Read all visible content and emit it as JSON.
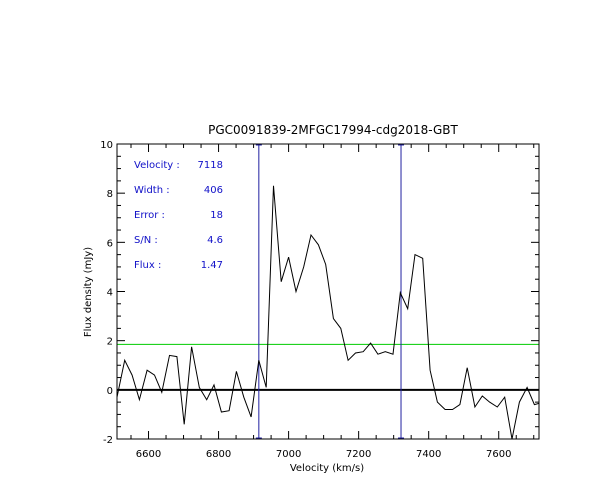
{
  "chart_data": {
    "type": "line",
    "title": "PGC0091839-2MFGC17994-cdg2018-GBT",
    "xlabel": "Velocity (km/s)",
    "ylabel": "Flux density (mJy)",
    "xlim": [
      6510,
      7715
    ],
    "ylim": [
      -2,
      10
    ],
    "x_ticks": [
      6600,
      6800,
      7000,
      7200,
      7400,
      7600
    ],
    "y_ticks": [
      -2,
      0,
      2,
      4,
      6,
      8,
      10
    ],
    "grid": false,
    "info": [
      {
        "label": "Velocity :",
        "value": "7118"
      },
      {
        "label": "Width :",
        "value": "406"
      },
      {
        "label": "Error :",
        "value": "18"
      },
      {
        "label": "S/N :",
        "value": "4.6"
      },
      {
        "label": "Flux :",
        "value": "1.47"
      }
    ],
    "reference_lines": {
      "zero_level": 0,
      "threshold_level": 1.85,
      "threshold_color": "#00cc00",
      "velocity_edges": [
        6915,
        7321
      ],
      "edge_color": "#2020a0"
    },
    "series": [
      {
        "color": "#000000",
        "x": [
          6510,
          6532,
          6553,
          6574,
          6596,
          6617,
          6638,
          6660,
          6681,
          6702,
          6723,
          6745,
          6766,
          6787,
          6808,
          6830,
          6851,
          6872,
          6893,
          6915,
          6936,
          6957,
          6979,
          7000,
          7021,
          7043,
          7064,
          7085,
          7106,
          7128,
          7149,
          7170,
          7191,
          7213,
          7234,
          7255,
          7276,
          7298,
          7319,
          7340,
          7361,
          7383,
          7404,
          7425,
          7447,
          7468,
          7489,
          7510,
          7532,
          7553,
          7574,
          7596,
          7617,
          7638,
          7659,
          7681,
          7702,
          7715
        ],
        "y": [
          -0.3,
          1.2,
          0.6,
          -0.4,
          0.8,
          0.6,
          -0.1,
          1.4,
          1.35,
          -1.4,
          1.75,
          0.1,
          -0.4,
          0.2,
          -0.9,
          -0.85,
          0.75,
          -0.3,
          -1.1,
          1.2,
          0.1,
          8.3,
          4.4,
          5.4,
          4.0,
          5.0,
          6.3,
          5.9,
          5.1,
          2.9,
          2.5,
          1.2,
          1.5,
          1.55,
          1.9,
          1.45,
          1.55,
          1.45,
          3.95,
          3.3,
          5.5,
          5.35,
          0.8,
          -0.5,
          -0.8,
          -0.8,
          -0.6,
          0.9,
          -0.7,
          -0.25,
          -0.5,
          -0.7,
          -0.3,
          -2.0,
          -0.5,
          0.1,
          -0.6,
          -0.55
        ]
      }
    ]
  }
}
